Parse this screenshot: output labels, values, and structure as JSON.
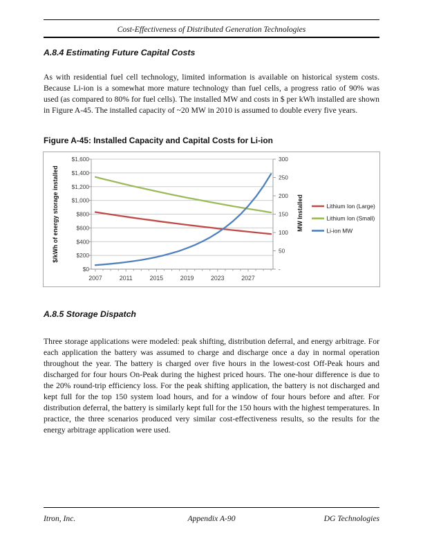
{
  "page": {
    "running_header": "Cost-Effectiveness of Distributed Generation Technologies",
    "section_a84": {
      "heading": "A.8.4  Estimating Future Capital Costs",
      "body": "As with residential fuel cell technology, limited information is available on historical system costs.  Because Li-ion is a somewhat more mature technology than fuel cells, a progress ratio of 90% was used (as compared to 80% for fuel cells).  The installed MW and costs in $ per kWh installed are shown in Figure A-45.  The installed capacity of ~20 MW in 2010 is assumed to double every five years."
    },
    "figure": {
      "caption": "Figure A-45:  Installed Capacity and Capital Costs for Li-ion"
    },
    "section_a85": {
      "heading": "A.8.5  Storage Dispatch",
      "body": "Three storage applications were modeled: peak shifting, distribution deferral, and energy arbitrage.  For each application the battery was assumed to charge and discharge once a day in normal operation throughout the year.  The battery is charged over five hours in the lowest-cost Off-Peak hours and discharged for four hours On-Peak during the highest priced hours.  The one-hour difference is due to the 20% round-trip efficiency loss.  For the peak shifting application, the battery is not discharged and kept full for the top 150 system load hours, and for a window of four hours before and after.  For distribution deferral, the battery is similarly kept full for the 150 hours with the highest temperatures.  In practice, the three scenarios produced very similar cost-effectiveness results, so the results for the energy arbitrage application were used."
    },
    "footer": {
      "left": "Itron, Inc.",
      "center": "Appendix A-90",
      "right": "DG Technologies"
    }
  },
  "chart_data": {
    "type": "line",
    "x": [
      2007,
      2008,
      2009,
      2010,
      2011,
      2012,
      2013,
      2014,
      2015,
      2016,
      2017,
      2018,
      2019,
      2020,
      2021,
      2022,
      2023,
      2024,
      2025,
      2026,
      2027,
      2028,
      2029,
      2030
    ],
    "series": [
      {
        "name": "Lithium Ion (Large)",
        "axis": "left",
        "color": "#BE4B48",
        "values": [
          830,
          813,
          796,
          779,
          763,
          747,
          731,
          716,
          701,
          686,
          672,
          658,
          644,
          631,
          618,
          605,
          592,
          580,
          568,
          556,
          544,
          533,
          522,
          511
        ]
      },
      {
        "name": "Lithium Ion (Small)",
        "axis": "left",
        "color": "#9BBB59",
        "values": [
          1340,
          1312,
          1285,
          1258,
          1232,
          1206,
          1181,
          1156,
          1132,
          1108,
          1085,
          1062,
          1040,
          1018,
          997,
          976,
          956,
          936,
          916,
          897,
          878,
          860,
          842,
          824
        ]
      },
      {
        "name": "Li-ion MW",
        "axis": "right",
        "color": "#4F81BD",
        "values": [
          11,
          12.6,
          14.5,
          16.6,
          19.1,
          21.9,
          25.1,
          28.8,
          33,
          37.9,
          43.5,
          49.9,
          57.3,
          65.7,
          75.4,
          86.5,
          99.2,
          113.9,
          130.6,
          149.9,
          172,
          197.3,
          226.4,
          259.7
        ]
      }
    ],
    "left_axis": {
      "title": "$/kWh of energy storage installed",
      "min": 0,
      "max": 1600,
      "step": 200,
      "labels_top_to_bottom": [
        "$1,600",
        "$1,400",
        "$1,200",
        "$1,000",
        "$800",
        "$600",
        "$400",
        "$200",
        "$0"
      ]
    },
    "right_axis": {
      "title": "MW Installed",
      "min": 0,
      "max": 300,
      "step": 50,
      "labels_top_to_bottom": [
        "300",
        "250",
        "200",
        "150",
        "100",
        "50",
        "-"
      ]
    },
    "x_axis": {
      "labels": [
        "2007",
        "2011",
        "2015",
        "2019",
        "2023",
        "2027"
      ],
      "label_years": [
        2007,
        2011,
        2015,
        2019,
        2023,
        2027
      ]
    },
    "grid": "horizontal",
    "legend_position": "right"
  }
}
